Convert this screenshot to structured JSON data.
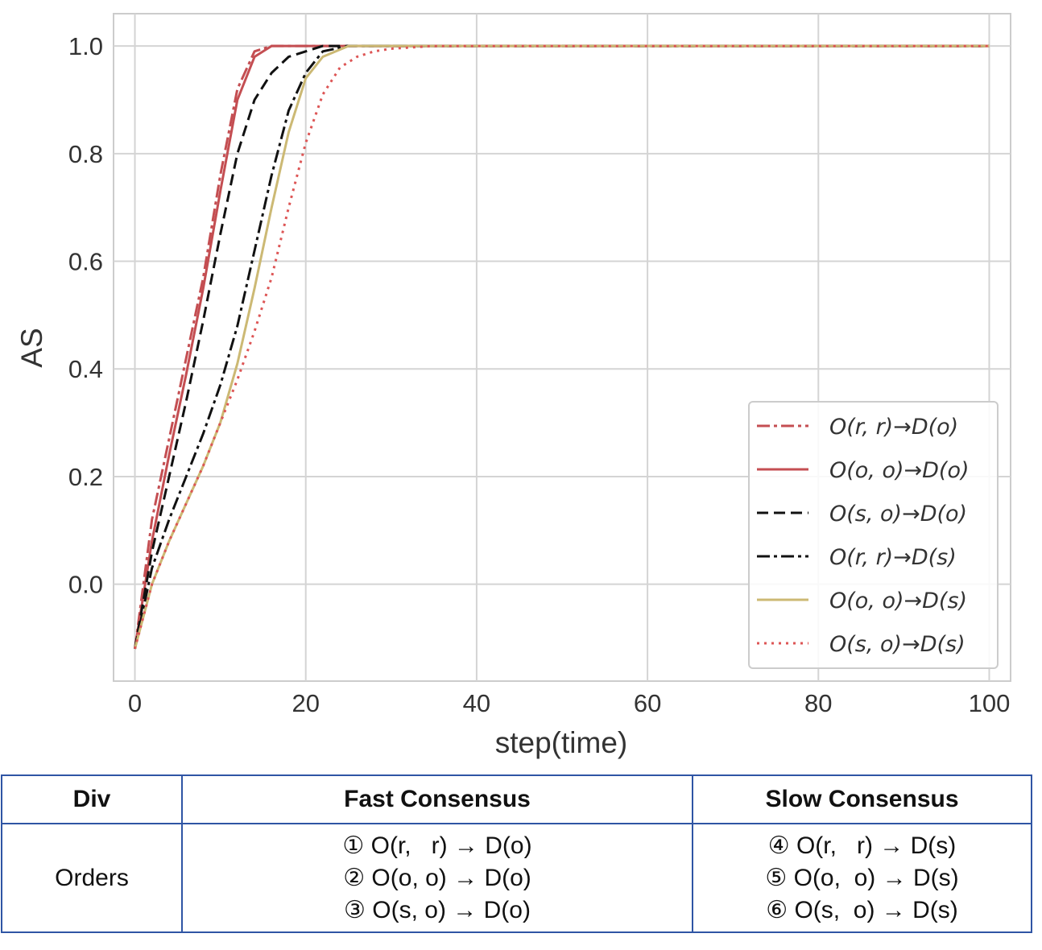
{
  "chart_data": {
    "type": "line",
    "xlabel": "step(time)",
    "ylabel": "AS",
    "xlim": [
      -2.5,
      102.5
    ],
    "ylim": [
      -0.18,
      1.06
    ],
    "xticks": [
      0,
      20,
      40,
      60,
      80,
      100
    ],
    "yticks": [
      0.0,
      0.2,
      0.4,
      0.6,
      0.8,
      1.0
    ],
    "ytick_labels": [
      "0.0",
      "0.2",
      "0.4",
      "0.6",
      "0.8",
      "1.0"
    ],
    "grid": true,
    "legend_position": "lower-right",
    "series": [
      {
        "name": "O(r, r)→D(o)",
        "color": "#c44e52",
        "dash": "dashdot",
        "width": 3,
        "x": [
          0,
          2,
          4,
          6,
          8,
          10,
          12,
          14,
          16,
          18,
          20,
          25,
          30,
          40,
          60,
          80,
          100
        ],
        "y": [
          -0.12,
          0.12,
          0.27,
          0.42,
          0.57,
          0.76,
          0.92,
          0.99,
          1.0,
          1.0,
          1.0,
          1.0,
          1.0,
          1.0,
          1.0,
          1.0,
          1.0
        ]
      },
      {
        "name": "O(o, o)→D(o)",
        "color": "#c44e52",
        "dash": "solid",
        "width": 3,
        "x": [
          0,
          2,
          4,
          6,
          8,
          10,
          12,
          14,
          16,
          18,
          20,
          25,
          30,
          40,
          60,
          80,
          100
        ],
        "y": [
          -0.12,
          0.08,
          0.24,
          0.39,
          0.55,
          0.73,
          0.9,
          0.98,
          1.0,
          1.0,
          1.0,
          1.0,
          1.0,
          1.0,
          1.0,
          1.0,
          1.0
        ]
      },
      {
        "name": "O(s, o)→D(o)",
        "color": "#111111",
        "dash": "dashed",
        "width": 3,
        "x": [
          0,
          2,
          4,
          6,
          8,
          10,
          12,
          14,
          16,
          18,
          20,
          22,
          25,
          30,
          40,
          60,
          80,
          100
        ],
        "y": [
          -0.12,
          0.06,
          0.2,
          0.34,
          0.49,
          0.65,
          0.8,
          0.9,
          0.95,
          0.98,
          0.99,
          1.0,
          1.0,
          1.0,
          1.0,
          1.0,
          1.0,
          1.0
        ]
      },
      {
        "name": "O(r, r)→D(s)",
        "color": "#111111",
        "dash": "dashdot",
        "width": 3,
        "x": [
          0,
          2,
          4,
          6,
          8,
          10,
          12,
          14,
          16,
          18,
          20,
          22,
          25,
          30,
          40,
          60,
          80,
          100
        ],
        "y": [
          -0.12,
          0.03,
          0.12,
          0.2,
          0.28,
          0.37,
          0.48,
          0.62,
          0.76,
          0.88,
          0.95,
          0.99,
          1.0,
          1.0,
          1.0,
          1.0,
          1.0,
          1.0
        ]
      },
      {
        "name": "O(o, o)→D(s)",
        "color": "#ccb974",
        "dash": "solid",
        "width": 3,
        "x": [
          0,
          2,
          4,
          6,
          8,
          10,
          12,
          14,
          16,
          18,
          20,
          22,
          25,
          30,
          40,
          60,
          80,
          100
        ],
        "y": [
          -0.12,
          0.0,
          0.08,
          0.15,
          0.22,
          0.3,
          0.41,
          0.55,
          0.7,
          0.84,
          0.94,
          0.98,
          1.0,
          1.0,
          1.0,
          1.0,
          1.0,
          1.0
        ]
      },
      {
        "name": "O(s, o)→D(s)",
        "color": "#dd5555",
        "dash": "dotted",
        "width": 3,
        "x": [
          0,
          2,
          4,
          6,
          8,
          10,
          12,
          14,
          16,
          18,
          20,
          22,
          24,
          26,
          28,
          30,
          35,
          40,
          60,
          80,
          100
        ],
        "y": [
          -0.12,
          0.0,
          0.08,
          0.15,
          0.22,
          0.3,
          0.38,
          0.47,
          0.57,
          0.7,
          0.82,
          0.91,
          0.96,
          0.98,
          0.99,
          0.995,
          1.0,
          1.0,
          1.0,
          1.0,
          1.0
        ]
      }
    ]
  },
  "table": {
    "headers": [
      "Div",
      "Fast Consensus",
      "Slow Consensus"
    ],
    "row_label": "Orders",
    "fast": [
      "① O(r,   r) → D(o)",
      "② O(o, o) → D(o)",
      "③ O(s, o) → D(o)"
    ],
    "slow": [
      "④ O(r,   r) → D(s)",
      "⑤ O(o,  o) → D(s)",
      "⑥ O(s,  o) → D(s)"
    ]
  }
}
